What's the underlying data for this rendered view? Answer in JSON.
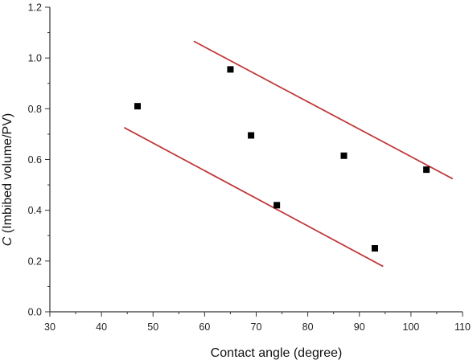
{
  "chart_data": {
    "type": "scatter",
    "title": "",
    "xlabel": "Contact angle (degree)",
    "ylabel_italic": "C",
    "ylabel_rest": " (Imbibed volume/PV)",
    "xlim": [
      30,
      110
    ],
    "ylim": [
      0.0,
      1.2
    ],
    "x_ticks": [
      "30",
      "40",
      "50",
      "60",
      "70",
      "80",
      "90",
      "100",
      "110"
    ],
    "y_ticks": [
      "0.0",
      "0.2",
      "0.4",
      "0.6",
      "0.8",
      "1.0",
      "1.2"
    ],
    "grid": false,
    "legend": "none",
    "points": [
      {
        "x": 47,
        "y": 0.81
      },
      {
        "x": 65,
        "y": 0.955
      },
      {
        "x": 69,
        "y": 0.695
      },
      {
        "x": 74,
        "y": 0.42
      },
      {
        "x": 87,
        "y": 0.615
      },
      {
        "x": 93,
        "y": 0.25
      },
      {
        "x": 103,
        "y": 0.56
      }
    ],
    "bounding_lines": [
      {
        "x1": 58,
        "y1": 1.065,
        "x2": 108,
        "y2": 0.525
      },
      {
        "x1": 44.5,
        "y1": 0.725,
        "x2": 94.5,
        "y2": 0.18
      }
    ],
    "colors": {
      "points": "#000000",
      "lines": "#c0393b",
      "axes": "#333333"
    }
  }
}
